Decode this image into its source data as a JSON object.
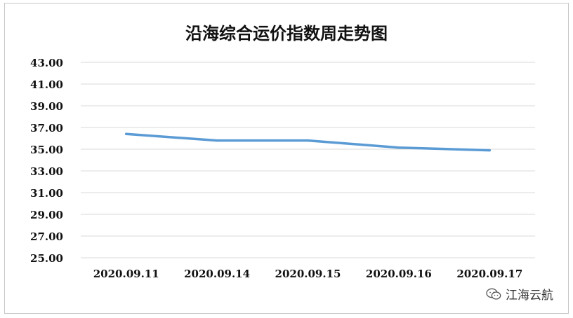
{
  "chart_data": {
    "type": "line",
    "title": "沿海综合运价指数周走势图",
    "categories": [
      "2020.09.11",
      "2020.09.14",
      "2020.09.15",
      "2020.09.16",
      "2020.09.17"
    ],
    "series": [
      {
        "values": [
          36.4,
          35.8,
          35.8,
          35.15,
          34.9
        ],
        "color": "#5b9bd5"
      }
    ],
    "yticks": [
      "43.00",
      "41.00",
      "39.00",
      "37.00",
      "35.00",
      "33.00",
      "31.00",
      "29.00",
      "27.00",
      "25.00"
    ],
    "ylim": [
      25,
      43
    ],
    "grid": true,
    "legend": "none"
  },
  "watermark": {
    "text": "江海云航",
    "icon": "wechat-icon"
  }
}
